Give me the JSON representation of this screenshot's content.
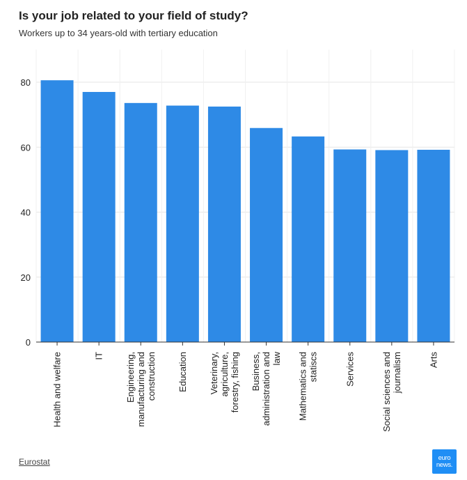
{
  "header": {
    "title": "Is your job related to your field of study?",
    "subtitle": "Workers up to 34 years-old with tertiary education"
  },
  "footer": {
    "source_label": "Eurostat",
    "logo_line1": "euro",
    "logo_line2": "news."
  },
  "colors": {
    "bar": "#2e8ae6",
    "grid": "#e6e6e6",
    "axis": "#333333"
  },
  "chart_data": {
    "type": "bar",
    "title": "Is your job related to your field of study?",
    "subtitle": "Workers up to 34 years-old with tertiary education",
    "categories": [
      [
        "Health and welfare"
      ],
      [
        "IT"
      ],
      [
        "Engineering,",
        "manufacturing and",
        "construction"
      ],
      [
        "Education"
      ],
      [
        "Veterinary,",
        "agriculture,",
        "forestry, fishing"
      ],
      [
        "Business,",
        "administration and",
        "law"
      ],
      [
        "Mathematics and",
        "statiscs"
      ],
      [
        "Services"
      ],
      [
        "Social sciences and",
        "journalism"
      ],
      [
        "Arts"
      ]
    ],
    "values": [
      80.6,
      77.0,
      73.6,
      72.8,
      72.5,
      65.9,
      63.3,
      59.3,
      59.1,
      59.2
    ],
    "yticks": [
      0,
      20,
      40,
      60,
      80
    ],
    "ylim": [
      0,
      90
    ],
    "xlabel": "",
    "ylabel": "",
    "grid": true
  }
}
